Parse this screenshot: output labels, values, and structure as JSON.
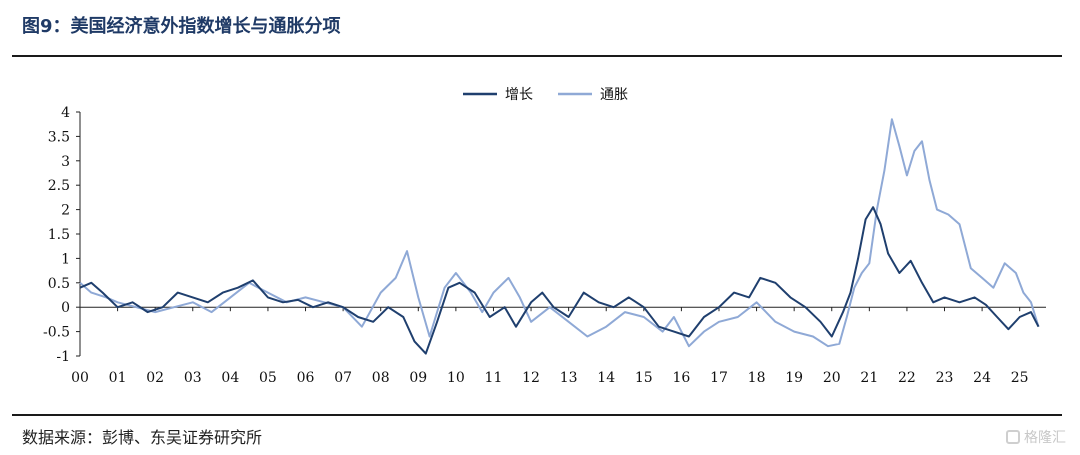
{
  "header": {
    "title": "图9：美国经济意外指数增长与通胀分项"
  },
  "footer": {
    "source": "数据来源：彭博、东吴证券研究所"
  },
  "watermark": {
    "text": "格隆汇"
  },
  "chart_data": {
    "type": "line",
    "xlim": [
      2000,
      2025.7
    ],
    "ylim": [
      -1,
      4
    ],
    "yticks": [
      -1,
      -0.5,
      0,
      0.5,
      1,
      1.5,
      2,
      2.5,
      3,
      3.5,
      4
    ],
    "ytick_labels": [
      "-1",
      "-0.5",
      "0",
      "0.5",
      "1",
      "1.5",
      "2",
      "2.5",
      "3",
      "3.5",
      "4"
    ],
    "xtick_labels": [
      "00",
      "01",
      "02",
      "03",
      "04",
      "05",
      "06",
      "07",
      "08",
      "09",
      "10",
      "11",
      "12",
      "13",
      "14",
      "15",
      "16",
      "17",
      "18",
      "19",
      "20",
      "21",
      "22",
      "23",
      "24",
      "25"
    ],
    "grid": false,
    "legend_position": "top-center",
    "series": [
      {
        "name": "增长",
        "color": "#1f3f6e",
        "x": [
          2000.0,
          2000.3,
          2000.6,
          2001.0,
          2001.4,
          2001.8,
          2002.2,
          2002.6,
          2003.0,
          2003.4,
          2003.8,
          2004.2,
          2004.6,
          2005.0,
          2005.4,
          2005.8,
          2006.2,
          2006.6,
          2007.0,
          2007.4,
          2007.8,
          2008.2,
          2008.6,
          2008.9,
          2009.2,
          2009.5,
          2009.8,
          2010.1,
          2010.5,
          2010.9,
          2011.3,
          2011.6,
          2012.0,
          2012.3,
          2012.6,
          2013.0,
          2013.4,
          2013.8,
          2014.2,
          2014.6,
          2015.0,
          2015.4,
          2015.8,
          2016.2,
          2016.6,
          2017.0,
          2017.4,
          2017.8,
          2018.1,
          2018.5,
          2018.9,
          2019.3,
          2019.7,
          2020.0,
          2020.3,
          2020.5,
          2020.7,
          2020.9,
          2021.1,
          2021.3,
          2021.5,
          2021.8,
          2022.1,
          2022.4,
          2022.7,
          2023.0,
          2023.4,
          2023.8,
          2024.1,
          2024.4,
          2024.7,
          2025.0,
          2025.3,
          2025.5
        ],
        "y": [
          0.4,
          0.5,
          0.3,
          0.0,
          0.1,
          -0.1,
          0.0,
          0.3,
          0.2,
          0.1,
          0.3,
          0.4,
          0.55,
          0.2,
          0.1,
          0.15,
          0.0,
          0.1,
          0.0,
          -0.2,
          -0.3,
          0.0,
          -0.2,
          -0.7,
          -0.95,
          -0.3,
          0.4,
          0.5,
          0.3,
          -0.2,
          0.0,
          -0.4,
          0.1,
          0.3,
          0.0,
          -0.2,
          0.3,
          0.1,
          0.0,
          0.2,
          0.0,
          -0.4,
          -0.5,
          -0.6,
          -0.2,
          0.0,
          0.3,
          0.2,
          0.6,
          0.5,
          0.2,
          0.0,
          -0.3,
          -0.6,
          -0.1,
          0.3,
          1.0,
          1.8,
          2.05,
          1.7,
          1.1,
          0.7,
          0.95,
          0.5,
          0.1,
          0.2,
          0.1,
          0.2,
          0.05,
          -0.2,
          -0.45,
          -0.2,
          -0.1,
          -0.4
        ]
      },
      {
        "name": "通胀",
        "color": "#8fa9d6",
        "x": [
          2000.0,
          2000.3,
          2000.7,
          2001.0,
          2001.5,
          2002.0,
          2002.5,
          2003.0,
          2003.5,
          2004.0,
          2004.5,
          2005.0,
          2005.5,
          2006.0,
          2006.5,
          2007.0,
          2007.5,
          2008.0,
          2008.4,
          2008.7,
          2009.0,
          2009.3,
          2009.7,
          2010.0,
          2010.4,
          2010.7,
          2011.0,
          2011.4,
          2011.7,
          2012.0,
          2012.5,
          2013.0,
          2013.5,
          2014.0,
          2014.5,
          2015.0,
          2015.5,
          2015.8,
          2016.2,
          2016.6,
          2017.0,
          2017.5,
          2018.0,
          2018.5,
          2019.0,
          2019.5,
          2019.9,
          2020.2,
          2020.4,
          2020.6,
          2020.8,
          2021.0,
          2021.2,
          2021.4,
          2021.6,
          2021.8,
          2022.0,
          2022.2,
          2022.4,
          2022.6,
          2022.8,
          2023.1,
          2023.4,
          2023.7,
          2024.0,
          2024.3,
          2024.6,
          2024.9,
          2025.1,
          2025.3,
          2025.5
        ],
        "y": [
          0.5,
          0.3,
          0.2,
          0.1,
          0.0,
          -0.1,
          0.0,
          0.1,
          -0.1,
          0.2,
          0.5,
          0.3,
          0.1,
          0.2,
          0.1,
          0.0,
          -0.4,
          0.3,
          0.6,
          1.15,
          0.2,
          -0.6,
          0.4,
          0.7,
          0.3,
          -0.1,
          0.3,
          0.6,
          0.2,
          -0.3,
          0.0,
          -0.3,
          -0.6,
          -0.4,
          -0.1,
          -0.2,
          -0.5,
          -0.2,
          -0.8,
          -0.5,
          -0.3,
          -0.2,
          0.1,
          -0.3,
          -0.5,
          -0.6,
          -0.8,
          -0.75,
          -0.2,
          0.4,
          0.7,
          0.9,
          2.0,
          2.8,
          3.85,
          3.3,
          2.7,
          3.2,
          3.4,
          2.6,
          2.0,
          1.9,
          1.7,
          0.8,
          0.6,
          0.4,
          0.9,
          0.7,
          0.3,
          0.1,
          -0.4
        ]
      }
    ]
  }
}
